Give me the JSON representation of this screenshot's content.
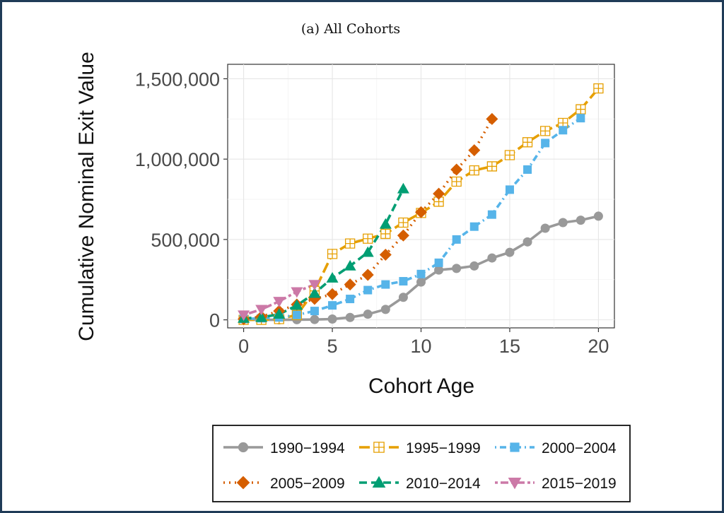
{
  "chart_data": {
    "type": "line",
    "title": "(a) All Cohorts",
    "xlabel": "Cohort Age",
    "ylabel": "Cumulative Nominal Exit Value",
    "xlim": [
      -0.9,
      20.9
    ],
    "ylim": [
      -50000,
      1590000
    ],
    "x_ticks": [
      0,
      5,
      10,
      15,
      20
    ],
    "y_ticks": [
      0,
      500000,
      1000000,
      1500000
    ],
    "x_tick_labels": [
      "0",
      "5",
      "10",
      "15",
      "20"
    ],
    "y_tick_labels": [
      "0",
      "500,000",
      "1,000,000",
      "1,500,000"
    ],
    "grid": true,
    "legend_position": "bottom",
    "series": [
      {
        "name": "1990−1994",
        "color": "#999999",
        "dash": "solid",
        "marker": "circle",
        "x": [
          0,
          1,
          2,
          3,
          4,
          5,
          6,
          7,
          8,
          9,
          10,
          11,
          12,
          13,
          14,
          15,
          16,
          17,
          18,
          19,
          20
        ],
        "values": [
          0,
          0,
          0,
          1000,
          2000,
          5000,
          15000,
          35000,
          65000,
          140000,
          235000,
          310000,
          320000,
          335000,
          385000,
          420000,
          485000,
          570000,
          605000,
          620000,
          645000
        ]
      },
      {
        "name": "1995−1999",
        "color": "#E69F00",
        "dash": "longdash",
        "marker": "square-plus",
        "x": [
          0,
          1,
          2,
          3,
          4,
          5,
          6,
          7,
          8,
          9,
          10,
          11,
          12,
          13,
          14,
          15,
          16,
          17,
          18,
          19,
          20
        ],
        "values": [
          0,
          0,
          5000,
          30000,
          180000,
          410000,
          475000,
          505000,
          535000,
          605000,
          665000,
          735000,
          860000,
          930000,
          955000,
          1025000,
          1105000,
          1175000,
          1225000,
          1310000,
          1440000
        ]
      },
      {
        "name": "2000−2004",
        "color": "#56B4E9",
        "dash": "dotdash",
        "marker": "square",
        "x": [
          0,
          1,
          2,
          3,
          4,
          5,
          6,
          7,
          8,
          9,
          10,
          11,
          12,
          13,
          14,
          15,
          16,
          17,
          18,
          19
        ],
        "values": [
          5000,
          10000,
          15000,
          30000,
          55000,
          90000,
          130000,
          185000,
          220000,
          240000,
          285000,
          355000,
          500000,
          580000,
          655000,
          810000,
          935000,
          1100000,
          1180000,
          1255000
        ]
      },
      {
        "name": "2005−2009",
        "color": "#D55E00",
        "dash": "dotted",
        "marker": "diamond",
        "x": [
          0,
          1,
          2,
          3,
          4,
          5,
          6,
          7,
          8,
          9,
          10,
          11,
          12,
          13,
          14
        ],
        "values": [
          5000,
          20000,
          55000,
          95000,
          130000,
          160000,
          220000,
          280000,
          405000,
          525000,
          670000,
          785000,
          935000,
          1055000,
          1250000
        ]
      },
      {
        "name": "2010−2014",
        "color": "#009E73",
        "dash": "dashed",
        "marker": "triangle-up",
        "x": [
          0,
          1,
          2,
          3,
          4,
          5,
          6,
          7,
          8,
          9
        ],
        "values": [
          10000,
          15000,
          35000,
          90000,
          165000,
          260000,
          335000,
          420000,
          595000,
          815000
        ]
      },
      {
        "name": "2015−2019",
        "color": "#CC79A7",
        "dash": "twodash",
        "marker": "triangle-down",
        "x": [
          0,
          1,
          2,
          3,
          4
        ],
        "values": [
          30000,
          65000,
          115000,
          175000,
          220000
        ]
      }
    ]
  }
}
